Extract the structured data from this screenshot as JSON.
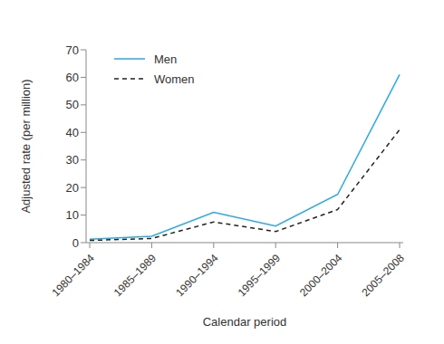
{
  "chart_data": {
    "type": "line",
    "x_label": "Calendar period",
    "y_label": "Adjusted rate (per million)",
    "categories": [
      "1980–1984",
      "1985–1989",
      "1990–1994",
      "1995–1999",
      "2000–2004",
      "2005–2008"
    ],
    "series": [
      {
        "name": "Men",
        "color": "#29abe2",
        "line_style": "solid",
        "values": [
          1.2,
          2.3,
          11,
          6,
          17.5,
          61
        ]
      },
      {
        "name": "Women",
        "color": "#222222",
        "line_style": "dashed",
        "values": [
          0.8,
          1.5,
          7.5,
          4,
          12,
          41
        ]
      }
    ],
    "ylim": [
      0,
      70
    ],
    "yticks": [
      0,
      10,
      20,
      30,
      40,
      50,
      60,
      70
    ],
    "grid": false,
    "legend": "upper left"
  }
}
